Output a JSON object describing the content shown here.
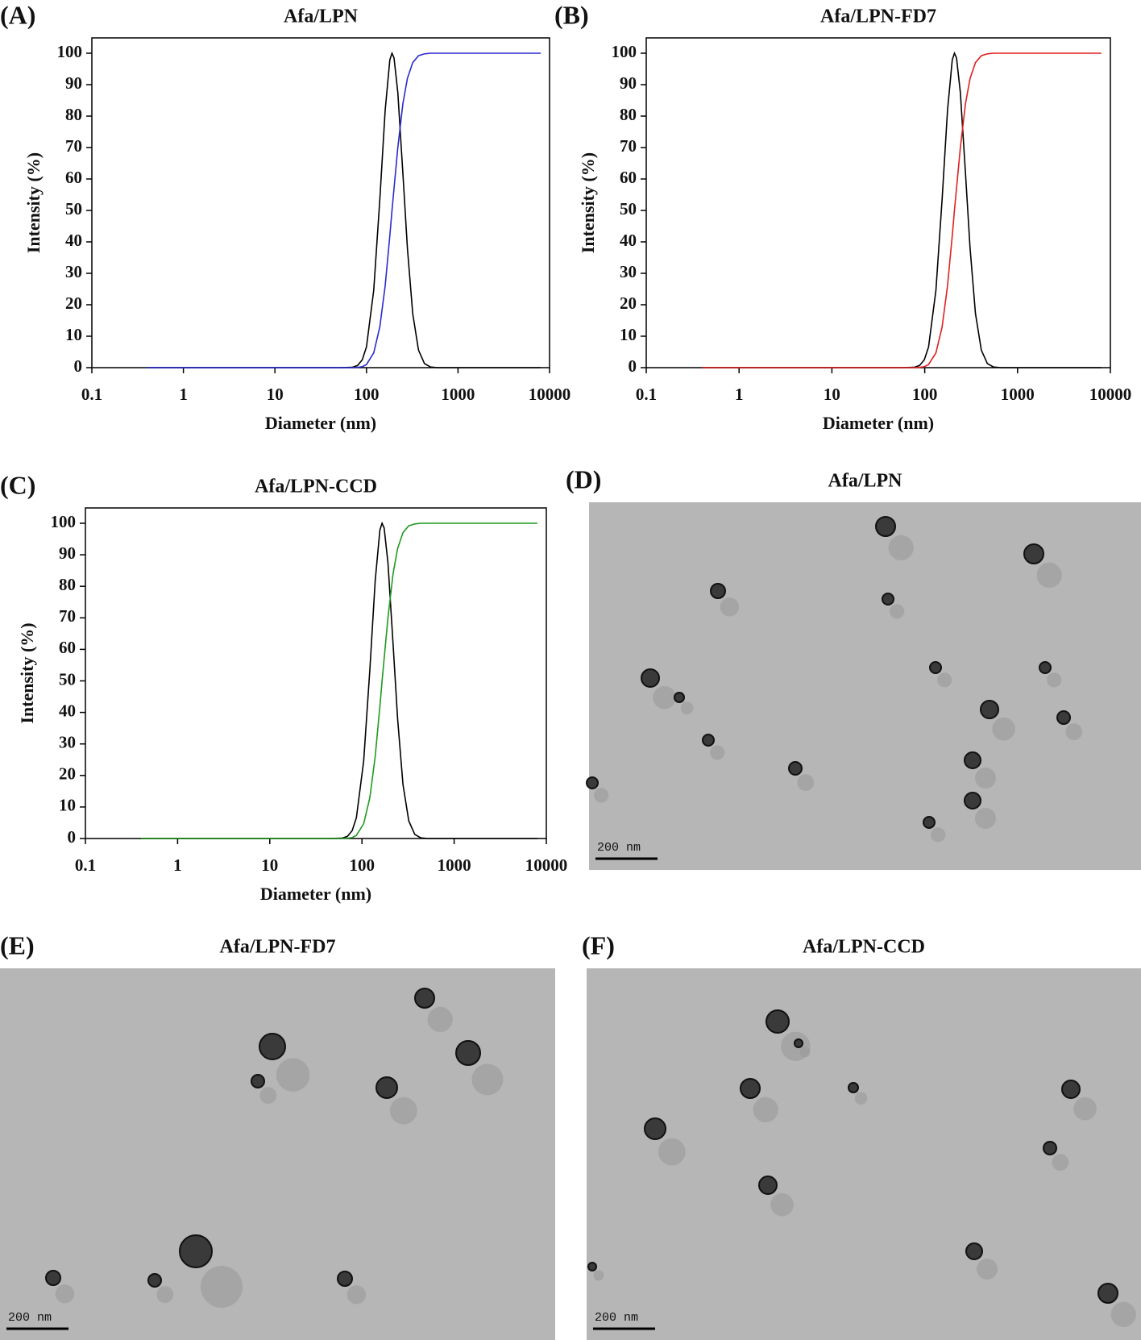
{
  "chart_data": [
    {
      "type": "line",
      "panel": "(A)",
      "title": "Afa/LPN",
      "x_label": "Diameter (nm)",
      "y_label": "Intensity (%)",
      "xscale": "log",
      "xlim": [
        0.1,
        10000
      ],
      "xticks": [
        0.1,
        1,
        10,
        100,
        1000,
        10000
      ],
      "ylim": [
        0,
        100
      ],
      "yticks": [
        0,
        10,
        20,
        30,
        40,
        50,
        60,
        70,
        80,
        90,
        100
      ],
      "x": [
        0.4,
        1,
        10,
        50,
        70,
        80,
        90,
        100,
        120,
        140,
        160,
        180,
        190,
        200,
        220,
        250,
        280,
        320,
        370,
        430,
        500,
        600,
        1000,
        8000
      ],
      "series": [
        {
          "color": "#000000",
          "values": [
            0,
            0,
            0,
            0,
            0.1,
            0.7,
            2.5,
            6.6,
            24.6,
            53.6,
            81.8,
            97.9,
            100,
            98.5,
            87.5,
            61.7,
            38,
            17.2,
            5.6,
            1.3,
            0.2,
            0,
            0,
            0
          ]
        },
        {
          "color": "#2b2bd0",
          "values": [
            0,
            0,
            0,
            0,
            0,
            0.1,
            0.3,
            1,
            4.7,
            13,
            26,
            42,
            50,
            57,
            70,
            84,
            92,
            97,
            99.2,
            99.8,
            100,
            100,
            100,
            100
          ]
        }
      ]
    },
    {
      "type": "line",
      "panel": "(B)",
      "title": "Afa/LPN-FD7",
      "x_label": "Diameter (nm)",
      "y_label": "Intensity (%)",
      "xscale": "log",
      "xlim": [
        0.1,
        10000
      ],
      "xticks": [
        0.1,
        1,
        10,
        100,
        1000,
        10000
      ],
      "ylim": [
        0,
        100
      ],
      "yticks": [
        0,
        10,
        20,
        30,
        40,
        50,
        60,
        70,
        80,
        90,
        100
      ],
      "x": [
        0.4,
        1,
        10,
        55,
        77,
        88,
        99,
        110,
        132,
        154,
        176,
        198,
        209,
        220,
        242,
        275,
        308,
        352,
        407,
        473,
        550,
        660,
        1100,
        8000
      ],
      "series": [
        {
          "color": "#000000",
          "values": [
            0,
            0,
            0,
            0,
            0.1,
            0.7,
            2.5,
            6.6,
            24.6,
            53.6,
            81.8,
            97.9,
            100,
            98.5,
            87.5,
            61.7,
            38,
            17.2,
            5.6,
            1.3,
            0.2,
            0,
            0,
            0
          ]
        },
        {
          "color": "#e02020",
          "values": [
            0,
            0,
            0,
            0,
            0,
            0.1,
            0.3,
            1,
            4.7,
            13,
            26,
            42,
            50,
            57,
            70,
            84,
            92,
            97,
            99.2,
            99.8,
            100,
            100,
            100,
            100
          ]
        }
      ]
    },
    {
      "type": "line",
      "panel": "(C)",
      "title": "Afa/LPN-CCD",
      "x_label": "Diameter (nm)",
      "y_label": "Intensity (%)",
      "xscale": "log",
      "xlim": [
        0.1,
        10000
      ],
      "xticks": [
        0.1,
        1,
        10,
        100,
        1000,
        10000
      ],
      "ylim": [
        0,
        100
      ],
      "yticks": [
        0,
        10,
        20,
        30,
        40,
        50,
        60,
        70,
        80,
        90,
        100
      ],
      "x": [
        0.4,
        1,
        10,
        43.5,
        60.9,
        69.6,
        78.3,
        87,
        104.4,
        121.8,
        139.2,
        156.6,
        165.3,
        174,
        191.4,
        217.5,
        243.6,
        278.4,
        321.9,
        374.1,
        435,
        522,
        870,
        8000
      ],
      "series": [
        {
          "color": "#000000",
          "values": [
            0,
            0,
            0,
            0,
            0.1,
            0.7,
            2.5,
            6.6,
            24.6,
            53.6,
            81.8,
            97.9,
            100,
            98.5,
            87.5,
            61.7,
            38,
            17.2,
            5.6,
            1.3,
            0.2,
            0,
            0,
            0
          ]
        },
        {
          "color": "#1f9a1f",
          "values": [
            0,
            0,
            0,
            0,
            0,
            0.1,
            0.3,
            1,
            4.7,
            13,
            26,
            42,
            50,
            57,
            70,
            84,
            92,
            97,
            99.2,
            99.8,
            100,
            100,
            100,
            100
          ]
        }
      ]
    }
  ],
  "micrographs": [
    {
      "panel": "(D)",
      "title": "Afa/LPN",
      "scale_bar": "200 nm"
    },
    {
      "panel": "(E)",
      "title": "Afa/LPN-FD7",
      "scale_bar": "200 nm"
    },
    {
      "panel": "(F)",
      "title": "Afa/LPN-CCD",
      "scale_bar": "200 nm"
    }
  ]
}
